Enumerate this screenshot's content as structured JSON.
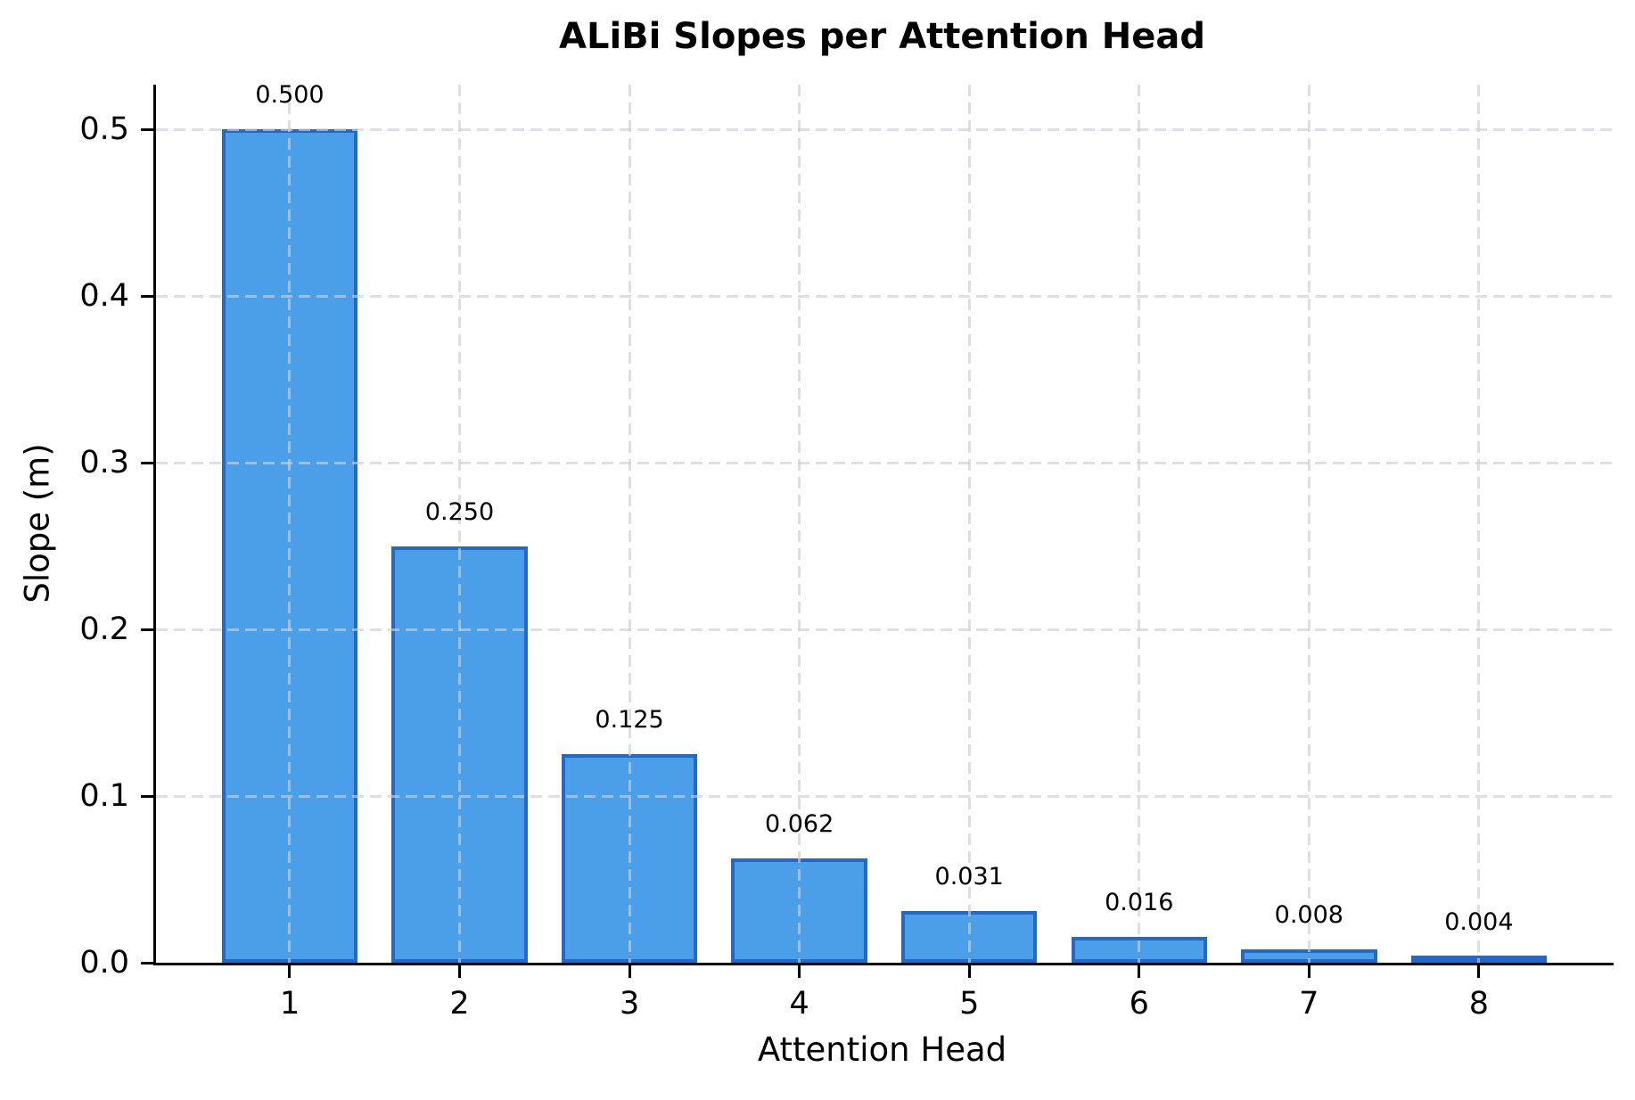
{
  "chart_data": {
    "type": "bar",
    "title": "ALiBi Slopes per Attention Head",
    "xlabel": "Attention Head",
    "ylabel": "Slope (m)",
    "categories": [
      "1",
      "2",
      "3",
      "4",
      "5",
      "6",
      "7",
      "8"
    ],
    "values": [
      0.5,
      0.25,
      0.125,
      0.0625,
      0.03125,
      0.015625,
      0.0078125,
      0.00390625
    ],
    "bar_value_labels": [
      "0.500",
      "0.250",
      "0.125",
      "0.062",
      "0.031",
      "0.016",
      "0.008",
      "0.004"
    ],
    "ytick_labels": [
      "0.0",
      "0.1",
      "0.2",
      "0.3",
      "0.4",
      "0.5"
    ],
    "yticks": [
      0.0,
      0.1,
      0.2,
      0.3,
      0.4,
      0.5
    ],
    "ylim": [
      0,
      0.527
    ],
    "xlim": [
      0.213,
      8.793
    ],
    "bar_width_data_units": 0.8,
    "grid": true,
    "grid_style": "dashed",
    "legend": "none",
    "colors": {
      "bar_fill": "#4A9FE8",
      "bar_edge": "#2369C8",
      "grid": "#CBCED3",
      "axis": "#000000",
      "text": "#000000",
      "background": "#FFFFFF"
    }
  }
}
